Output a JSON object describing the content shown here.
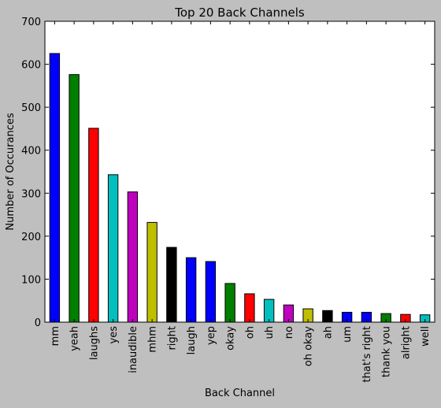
{
  "chart_data": {
    "type": "bar",
    "title": "Top 20 Back Channels",
    "xlabel": "Back Channel",
    "ylabel": "Number of Occurances",
    "ylim": [
      0,
      700
    ],
    "yticks": [
      0,
      100,
      200,
      300,
      400,
      500,
      600,
      700
    ],
    "grid": false,
    "legend": "none",
    "categories": [
      "mm",
      "yeah",
      "laughs",
      "yes",
      "inaudible",
      "mhm",
      "right",
      "laugh",
      "yep",
      "okay",
      "oh",
      "uh",
      "no",
      "oh okay",
      "ah",
      "um",
      "that's right",
      "thank you",
      "alright",
      "well"
    ],
    "values": [
      625,
      576,
      451,
      343,
      303,
      232,
      174,
      150,
      141,
      90,
      66,
      53,
      40,
      31,
      27,
      23,
      23,
      20,
      18,
      17
    ],
    "bar_colors": [
      "#0000ff",
      "#007f00",
      "#ff0000",
      "#00bfbf",
      "#bf00bf",
      "#bfbf00",
      "#000000",
      "#0000ff",
      "#0000ff",
      "#007f00",
      "#ff0000",
      "#00bfbf",
      "#bf00bf",
      "#bfbf00",
      "#000000",
      "#0000ff",
      "#0000ff",
      "#007f00",
      "#ff0000",
      "#00bfbf"
    ],
    "background_color": "#bfbfbf",
    "plot_background_color": "#ffffff"
  }
}
